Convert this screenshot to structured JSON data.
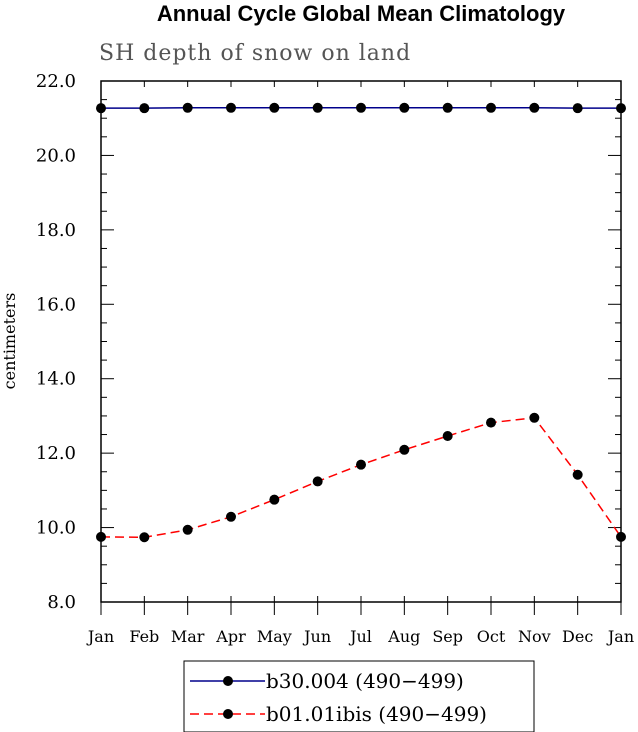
{
  "chart_data": {
    "type": "line",
    "title": "Annual Cycle Global Mean Climatology",
    "subtitle": "SH depth of snow on land",
    "ylabel": "centimeters",
    "xlabel": "",
    "categories": [
      "Jan",
      "Feb",
      "Mar",
      "Apr",
      "May",
      "Jun",
      "Jul",
      "Aug",
      "Sep",
      "Oct",
      "Nov",
      "Dec",
      "Jan"
    ],
    "ylim": [
      8.0,
      22.0
    ],
    "yticks": [
      "8.0",
      "10.0",
      "12.0",
      "14.0",
      "16.0",
      "18.0",
      "20.0",
      "22.0"
    ],
    "ytick_values": [
      8,
      10,
      12,
      14,
      16,
      18,
      20,
      22
    ],
    "grid": false,
    "legend_position": "bottom-center",
    "series": [
      {
        "name": "b30.004 (490−499)",
        "color": "#00008b",
        "line_style": "solid",
        "marker": "filled-circle",
        "values": [
          21.27,
          21.27,
          21.28,
          21.28,
          21.28,
          21.28,
          21.28,
          21.28,
          21.28,
          21.28,
          21.28,
          21.27,
          21.27
        ]
      },
      {
        "name": "b01.01ibis (490−499)",
        "color": "#ff0000",
        "line_style": "dashed",
        "marker": "filled-circle",
        "values": [
          9.75,
          9.74,
          9.94,
          10.29,
          10.75,
          11.24,
          11.69,
          12.09,
          12.46,
          12.82,
          12.95,
          11.42,
          9.75
        ]
      }
    ]
  }
}
